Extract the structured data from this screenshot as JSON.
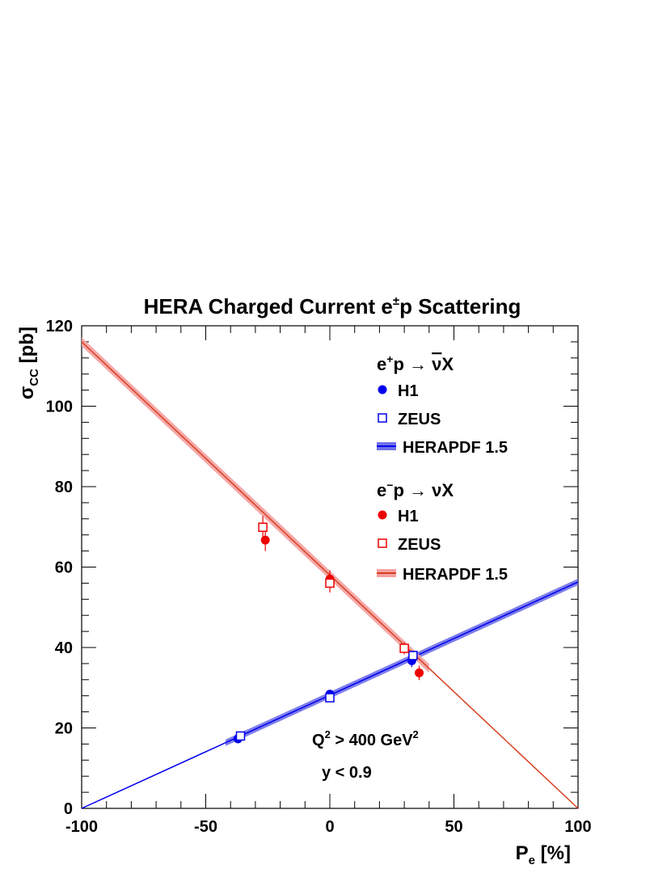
{
  "chart_data": {
    "type": "scatter",
    "title": {
      "main": "HERA Charged Current e",
      "sup": "±",
      "tail": "p Scattering"
    },
    "xlabel": {
      "main": "P",
      "sub": "e",
      "tail": " [%]"
    },
    "ylabel": {
      "main": "σ",
      "sub": "CC",
      "tail": " [pb]"
    },
    "xlim": [
      -100,
      100
    ],
    "ylim": [
      0,
      120
    ],
    "x_ticks": [
      -100,
      -50,
      0,
      50,
      100
    ],
    "y_ticks": [
      0,
      20,
      40,
      60,
      80,
      100,
      120
    ],
    "colors": {
      "eplus": "#0000ee",
      "eplus_band": "#7070e8",
      "eminus": "#ee0000",
      "eminus_line": "#d84020",
      "eminus_band": "#f4a0a0"
    },
    "series": [
      {
        "key": "eplus_h1",
        "marker": "filled-circle",
        "color": "eplus",
        "points": [
          {
            "x": -37,
            "y": 17.3,
            "err": 0.9
          },
          {
            "x": 0,
            "y": 28.4,
            "err": 0.9
          },
          {
            "x": 33,
            "y": 36.7,
            "err": 1.6
          }
        ]
      },
      {
        "key": "eplus_zeus",
        "marker": "open-square",
        "color": "eplus",
        "points": [
          {
            "x": -36,
            "y": 18.0,
            "err": 0.9
          },
          {
            "x": 0,
            "y": 27.5,
            "err": 0.9
          },
          {
            "x": 33.5,
            "y": 38.0,
            "err": 1.2
          }
        ]
      },
      {
        "key": "eminus_h1",
        "marker": "filled-circle",
        "color": "eminus",
        "points": [
          {
            "x": -26,
            "y": 66.7,
            "err": 2.7
          },
          {
            "x": 0,
            "y": 57.0,
            "err": 2.2
          },
          {
            "x": 36,
            "y": 33.7,
            "err": 1.8
          }
        ]
      },
      {
        "key": "eminus_zeus",
        "marker": "open-square",
        "color": "eminus",
        "points": [
          {
            "x": -27,
            "y": 69.9,
            "err": 2.8
          },
          {
            "x": 0,
            "y": 56.0,
            "err": 2.3
          },
          {
            "x": 30,
            "y": 39.8,
            "err": 1.5
          }
        ]
      }
    ],
    "fits": [
      {
        "key": "eplus_fit",
        "color": "eplus",
        "band": "eplus_band",
        "x": [
          -100,
          100
        ],
        "y": [
          0,
          56.3
        ],
        "band_start": -42,
        "band_half_width": 0.8
      },
      {
        "key": "eminus_fit",
        "color": "eminus_line",
        "band": "eminus_band",
        "x": [
          -100,
          100
        ],
        "y": [
          116.0,
          0
        ],
        "band_end": 40,
        "band_half_width": 1.1
      }
    ],
    "legend": [
      {
        "kind": "header",
        "text": {
          "a": "e",
          "sup": "+",
          "b": "p → ",
          "bar": "ν",
          "c": "X"
        }
      },
      {
        "kind": "marker",
        "marker": "filled-circle",
        "color": "eplus",
        "label": "H1"
      },
      {
        "kind": "marker",
        "marker": "open-square",
        "color": "eplus",
        "label": "ZEUS"
      },
      {
        "kind": "band",
        "color": "eplus",
        "band": "eplus_band",
        "label": "HERAPDF 1.5"
      },
      {
        "kind": "header",
        "text": {
          "a": "e",
          "sup": "−",
          "b": "p → νX"
        }
      },
      {
        "kind": "marker",
        "marker": "filled-circle",
        "color": "eminus",
        "label": "H1"
      },
      {
        "kind": "marker",
        "marker": "open-square",
        "color": "eminus",
        "label": "ZEUS"
      },
      {
        "kind": "band",
        "color": "eminus_line",
        "band": "eminus_band",
        "label": "HERAPDF 1.5"
      }
    ],
    "annotations": {
      "q2": {
        "a": "Q",
        "sup1": "2",
        "b": " > 400 GeV",
        "sup2": "2"
      },
      "y": "y < 0.9"
    }
  }
}
